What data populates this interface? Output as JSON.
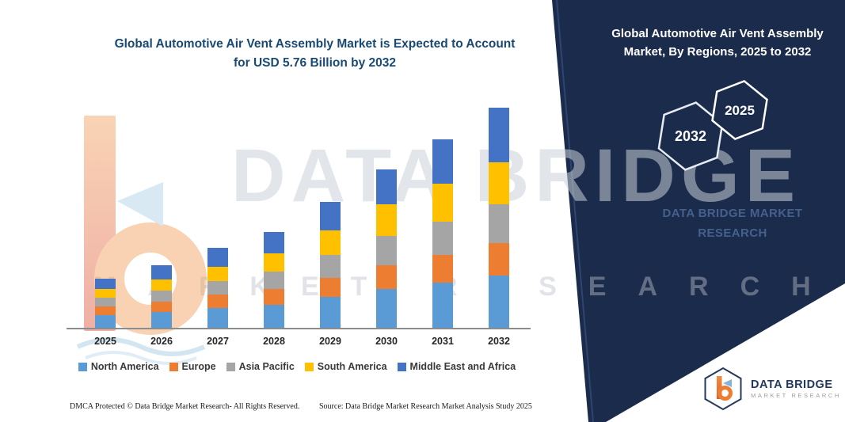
{
  "left": {
    "title_line1": "Global Automotive Air Vent Assembly Market is Expected to Account",
    "title_line2": "for USD 5.76 Billion by 2032"
  },
  "right_panel": {
    "title_line1": "Global Automotive Air Vent Assembly",
    "title_line2": "Market, By Regions, 2025 to 2032",
    "badges": [
      "2032",
      "2025"
    ],
    "brand_line1": "DATA BRIDGE MARKET",
    "brand_line2": "RESEARCH",
    "bg_color": "#1b2b4b"
  },
  "watermark": {
    "row1": "DATA BRIDGE",
    "row2": "MARKET RESEARCH"
  },
  "chart_data": {
    "type": "bar",
    "stacked": true,
    "title": "Global Automotive Air Vent Assembly Market is Expected to Account for USD 5.76 Billion by 2032",
    "categories": [
      "2025",
      "2026",
      "2027",
      "2028",
      "2029",
      "2030",
      "2031",
      "2032"
    ],
    "series": [
      {
        "name": "North America",
        "color": "#5B9BD5",
        "values": [
          0.35,
          0.43,
          0.54,
          0.62,
          0.83,
          1.03,
          1.2,
          1.38
        ]
      },
      {
        "name": "Europe",
        "color": "#ED7D31",
        "values": [
          0.23,
          0.27,
          0.35,
          0.41,
          0.5,
          0.62,
          0.72,
          0.85
        ]
      },
      {
        "name": "Asia Pacific",
        "color": "#A5A5A5",
        "values": [
          0.23,
          0.29,
          0.35,
          0.45,
          0.6,
          0.76,
          0.87,
          1.01
        ]
      },
      {
        "name": "South America",
        "color": "#FFC000",
        "values": [
          0.23,
          0.29,
          0.37,
          0.48,
          0.64,
          0.83,
          0.99,
          1.09
        ]
      },
      {
        "name": "Middle East and Africa",
        "color": "#4472C4",
        "values": [
          0.27,
          0.37,
          0.5,
          0.56,
          0.74,
          0.91,
          1.16,
          1.43
        ]
      }
    ],
    "totals_estimated": [
      1.31,
      1.65,
      2.11,
      2.52,
      3.31,
      4.15,
      4.94,
      5.76
    ],
    "units": "USD billion (estimated from bar heights)",
    "ylim": [
      0,
      5.76
    ],
    "grid": false,
    "legend_position": "bottom",
    "xlabel": "",
    "ylabel": ""
  },
  "footer": {
    "dmca": "DMCA Protected © Data Bridge Market Research-  All Rights Reserved.",
    "source": "Source: Data Bridge Market Research  Market Analysis Study 2025"
  },
  "logo": {
    "name": "DATA BRIDGE",
    "sub": "MARKET RESEARCH"
  }
}
